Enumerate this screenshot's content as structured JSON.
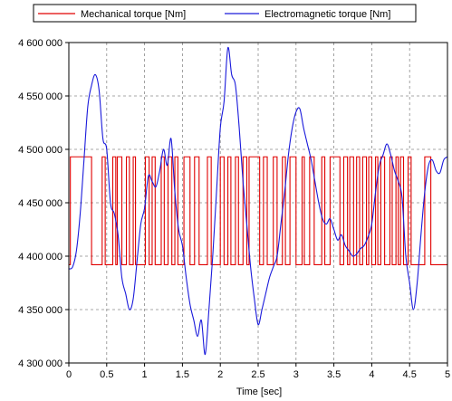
{
  "chart_data": {
    "type": "line",
    "title": "",
    "xlabel": "Time  [sec]",
    "ylabel": "",
    "xlim": [
      0,
      5
    ],
    "ylim": [
      4300000,
      4600000
    ],
    "grid": true,
    "legend_position": "top",
    "x_ticks": [
      0,
      0.5,
      1,
      1.5,
      2,
      2.5,
      3,
      3.5,
      4,
      4.5,
      5
    ],
    "x_tick_labels": [
      "0",
      "0.5",
      "1",
      "1.5",
      "2",
      "2.5",
      "3",
      "3.5",
      "4",
      "4.5",
      "5"
    ],
    "y_ticks": [
      4300000,
      4350000,
      4400000,
      4450000,
      4500000,
      4550000,
      4600000
    ],
    "y_tick_labels": [
      "4 300 000",
      "4 350 000",
      "4 400 000",
      "4 450 000",
      "4 500 000",
      "4 550 000",
      "4 600 000"
    ],
    "series": [
      {
        "name": "Mechanical torque [Nm]",
        "color": "#e00000",
        "style": "step",
        "low": 4392000,
        "high": 4493000,
        "switch_times": [
          0.02,
          0.3,
          0.44,
          0.48,
          0.58,
          0.62,
          0.64,
          0.7,
          0.76,
          0.8,
          0.85,
          0.88,
          1.01,
          1.06,
          1.1,
          1.14,
          1.22,
          1.26,
          1.31,
          1.36,
          1.4,
          1.44,
          1.52,
          1.6,
          1.66,
          1.72,
          1.83,
          1.88,
          2.0,
          2.05,
          2.1,
          2.14,
          2.2,
          2.24,
          2.3,
          2.35,
          2.38,
          2.52,
          2.57,
          2.62,
          2.7,
          2.75,
          2.82,
          2.86,
          2.92,
          3.0,
          3.08,
          3.11,
          3.18,
          3.24,
          3.34,
          3.38,
          3.45,
          3.58,
          3.63,
          3.68,
          3.71,
          3.76,
          3.8,
          3.84,
          3.88,
          3.93,
          3.96,
          4.0,
          4.05,
          4.08,
          4.12,
          4.17,
          4.24,
          4.27,
          4.32,
          4.35,
          4.38,
          4.42,
          4.48,
          4.52,
          4.7,
          4.78
        ],
        "start_level": "low"
      },
      {
        "name": "Electromagnetic torque [Nm]",
        "color": "#1a1adb",
        "x": [
          0.0,
          0.05,
          0.1,
          0.15,
          0.2,
          0.25,
          0.3,
          0.35,
          0.4,
          0.45,
          0.5,
          0.55,
          0.6,
          0.65,
          0.7,
          0.75,
          0.8,
          0.85,
          0.9,
          0.95,
          1.0,
          1.05,
          1.1,
          1.15,
          1.2,
          1.25,
          1.3,
          1.35,
          1.4,
          1.45,
          1.5,
          1.55,
          1.6,
          1.65,
          1.7,
          1.75,
          1.8,
          1.85,
          1.9,
          1.95,
          2.0,
          2.05,
          2.1,
          2.15,
          2.2,
          2.25,
          2.3,
          2.35,
          2.4,
          2.45,
          2.5,
          2.55,
          2.6,
          2.65,
          2.7,
          2.75,
          2.8,
          2.85,
          2.9,
          2.95,
          3.0,
          3.05,
          3.1,
          3.15,
          3.2,
          3.25,
          3.3,
          3.35,
          3.4,
          3.45,
          3.5,
          3.55,
          3.6,
          3.65,
          3.7,
          3.75,
          3.8,
          3.85,
          3.9,
          3.95,
          4.0,
          4.05,
          4.1,
          4.15,
          4.2,
          4.25,
          4.3,
          4.35,
          4.4,
          4.45,
          4.5,
          4.55,
          4.6,
          4.65,
          4.7,
          4.75,
          4.8,
          4.85,
          4.9,
          4.95,
          5.0
        ],
        "y": [
          4388000,
          4390000,
          4405000,
          4440000,
          4490000,
          4540000,
          4560000,
          4570000,
          4555000,
          4510000,
          4500000,
          4450000,
          4440000,
          4420000,
          4380000,
          4365000,
          4350000,
          4360000,
          4395000,
          4430000,
          4445000,
          4475000,
          4470000,
          4465000,
          4480000,
          4500000,
          4485000,
          4510000,
          4460000,
          4425000,
          4410000,
          4380000,
          4355000,
          4340000,
          4325000,
          4340000,
          4308000,
          4350000,
          4400000,
          4460000,
          4520000,
          4545000,
          4595000,
          4570000,
          4560000,
          4520000,
          4470000,
          4430000,
          4390000,
          4360000,
          4336000,
          4350000,
          4365000,
          4380000,
          4390000,
          4400000,
          4430000,
          4460000,
          4495000,
          4520000,
          4535000,
          4538000,
          4520000,
          4505000,
          4490000,
          4470000,
          4450000,
          4435000,
          4430000,
          4435000,
          4425000,
          4415000,
          4420000,
          4410000,
          4405000,
          4400000,
          4402000,
          4407000,
          4410000,
          4418000,
          4430000,
          4460000,
          4485000,
          4495000,
          4505000,
          4495000,
          4480000,
          4470000,
          4455000,
          4400000,
          4375000,
          4350000,
          4375000,
          4420000,
          4460000,
          4485000,
          4490000,
          4480000,
          4478000,
          4490000,
          4493000
        ]
      }
    ]
  }
}
